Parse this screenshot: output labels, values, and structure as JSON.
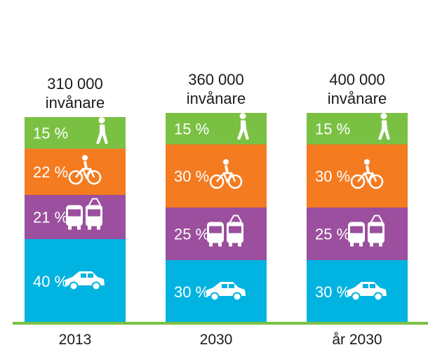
{
  "chart_data": {
    "type": "bar",
    "stacked": true,
    "categories": [
      "2013",
      "2030",
      "år 2030"
    ],
    "population": [
      [
        "310 000",
        "invånare"
      ],
      [
        "360 000",
        "invånare"
      ],
      [
        "400 000",
        "invånare"
      ]
    ],
    "series": [
      {
        "key": "car",
        "icon": "car-icon",
        "color": "#00b3e0",
        "values": [
          40,
          30,
          30
        ]
      },
      {
        "key": "transit",
        "icon": "bus-tram-icon",
        "color": "#9b4f9e",
        "values": [
          21,
          25,
          25
        ]
      },
      {
        "key": "bike",
        "icon": "bicycle-icon",
        "color": "#f47b20",
        "values": [
          22,
          30,
          30
        ]
      },
      {
        "key": "walk",
        "icon": "pedestrian-icon",
        "color": "#7ac143",
        "values": [
          15,
          15,
          15
        ]
      }
    ],
    "value_suffix": " %",
    "baseline_color": "#7ac143"
  }
}
